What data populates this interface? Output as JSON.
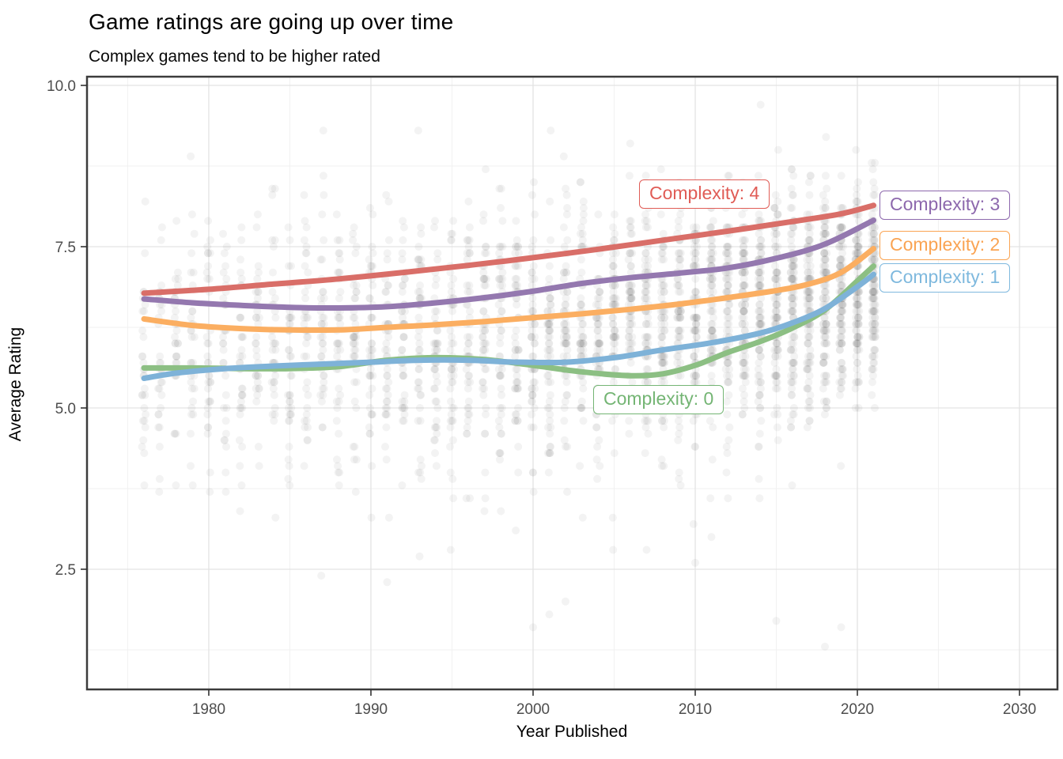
{
  "title": "Game ratings are going up over time",
  "subtitle": "Complex games tend to be higher rated",
  "chart_data": {
    "type": "scatter",
    "title": "Game ratings are going up over time",
    "subtitle": "Complex games tend to be higher rated",
    "xlabel": "Year Published",
    "ylabel": "Average Rating",
    "x_axis": {
      "range": [
        1972.49,
        2032.34
      ],
      "major_ticks": [
        1980,
        1990,
        2000,
        2010,
        2020,
        2030
      ],
      "tick_labels": [
        "1980",
        "1990",
        "2000",
        "2010",
        "2020",
        "2030"
      ],
      "minor_ticks": [
        1975,
        1985,
        1995,
        2005,
        2015,
        2025
      ]
    },
    "y_axis": {
      "range": [
        0.637,
        10.135
      ],
      "major_ticks": [
        10.0,
        7.5,
        5.0,
        2.5
      ],
      "tick_labels": [
        "10.0",
        "7.5",
        "5.0",
        "2.5"
      ],
      "minor_ticks": [
        8.75,
        6.25,
        3.75,
        1.25
      ]
    },
    "grid": {
      "major_color": "#e3e3e3",
      "minor_color": "#f1f1f1",
      "panel_border_color": "#3c3c3c",
      "tick_color": "#333333",
      "tick_label_color": "#4d4d4d"
    },
    "series": [
      {
        "label": "Complexity: 0",
        "line_color": "#8cbf83",
        "label_color": "#74b574",
        "points": [
          [
            1976,
            5.62
          ],
          [
            1979,
            5.62
          ],
          [
            1982,
            5.61
          ],
          [
            1985,
            5.61
          ],
          [
            1988,
            5.64
          ],
          [
            1991,
            5.74
          ],
          [
            1994,
            5.78
          ],
          [
            1997,
            5.75
          ],
          [
            2000,
            5.66
          ],
          [
            2003,
            5.56
          ],
          [
            2006,
            5.5
          ],
          [
            2008,
            5.53
          ],
          [
            2010,
            5.66
          ],
          [
            2012,
            5.86
          ],
          [
            2014,
            6.03
          ],
          [
            2016,
            6.24
          ],
          [
            2018,
            6.52
          ],
          [
            2020,
            6.97
          ],
          [
            2021,
            7.2
          ]
        ]
      },
      {
        "label": "Complexity: 1",
        "line_color": "#7eb2d8",
        "label_color": "#7fb9de",
        "points": [
          [
            1976,
            5.46
          ],
          [
            1978,
            5.54
          ],
          [
            1981,
            5.61
          ],
          [
            1984,
            5.65
          ],
          [
            1987,
            5.68
          ],
          [
            1990,
            5.71
          ],
          [
            1993,
            5.74
          ],
          [
            1996,
            5.74
          ],
          [
            1999,
            5.71
          ],
          [
            2002,
            5.71
          ],
          [
            2005,
            5.78
          ],
          [
            2008,
            5.9
          ],
          [
            2011,
            6.01
          ],
          [
            2014,
            6.16
          ],
          [
            2016,
            6.32
          ],
          [
            2018,
            6.54
          ],
          [
            2020,
            6.88
          ],
          [
            2021,
            7.07
          ]
        ]
      },
      {
        "label": "Complexity: 2",
        "line_color": "#fbae61",
        "label_color": "#faa453",
        "points": [
          [
            1976,
            6.38
          ],
          [
            1979,
            6.28
          ],
          [
            1982,
            6.23
          ],
          [
            1985,
            6.21
          ],
          [
            1988,
            6.21
          ],
          [
            1991,
            6.25
          ],
          [
            1994,
            6.29
          ],
          [
            1997,
            6.34
          ],
          [
            2000,
            6.4
          ],
          [
            2003,
            6.46
          ],
          [
            2006,
            6.53
          ],
          [
            2009,
            6.61
          ],
          [
            2012,
            6.71
          ],
          [
            2015,
            6.82
          ],
          [
            2017,
            6.92
          ],
          [
            2019,
            7.1
          ],
          [
            2021,
            7.47
          ]
        ]
      },
      {
        "label": "Complexity: 3",
        "line_color": "#9478af",
        "label_color": "#8d68ad",
        "points": [
          [
            1976,
            6.69
          ],
          [
            1979,
            6.63
          ],
          [
            1982,
            6.59
          ],
          [
            1985,
            6.56
          ],
          [
            1988,
            6.55
          ],
          [
            1991,
            6.57
          ],
          [
            1994,
            6.63
          ],
          [
            1997,
            6.71
          ],
          [
            2000,
            6.81
          ],
          [
            2003,
            6.93
          ],
          [
            2006,
            7.02
          ],
          [
            2009,
            7.09
          ],
          [
            2012,
            7.17
          ],
          [
            2015,
            7.32
          ],
          [
            2018,
            7.54
          ],
          [
            2021,
            7.91
          ]
        ]
      },
      {
        "label": "Complexity: 4",
        "line_color": "#d96e68",
        "label_color": "#e05c56",
        "points": [
          [
            1976,
            6.78
          ],
          [
            1980,
            6.84
          ],
          [
            1984,
            6.92
          ],
          [
            1988,
            7.0
          ],
          [
            1992,
            7.1
          ],
          [
            1996,
            7.21
          ],
          [
            2000,
            7.33
          ],
          [
            2004,
            7.46
          ],
          [
            2008,
            7.6
          ],
          [
            2012,
            7.74
          ],
          [
            2016,
            7.89
          ],
          [
            2019,
            8.01
          ],
          [
            2021,
            8.14
          ]
        ]
      }
    ],
    "scatter": {
      "description": "individual game ratings by year published",
      "color": "#7f7f7f",
      "opacity": 0.09,
      "radius": 5,
      "seed": 11,
      "year_start": 1976,
      "year_end": 2021,
      "count_keyframes": [
        [
          1976,
          30
        ],
        [
          1985,
          38
        ],
        [
          1995,
          50
        ],
        [
          2005,
          68
        ],
        [
          2012,
          88
        ],
        [
          2017,
          106
        ],
        [
          2021,
          116
        ]
      ],
      "mean_keyframes": [
        [
          1976,
          5.9
        ],
        [
          1985,
          5.92
        ],
        [
          1995,
          6.05
        ],
        [
          2005,
          6.2
        ],
        [
          2012,
          6.45
        ],
        [
          2017,
          6.65
        ],
        [
          2021,
          6.95
        ]
      ],
      "sd_keyframes": [
        [
          1976,
          0.95
        ],
        [
          1985,
          1.0
        ],
        [
          1995,
          1.05
        ],
        [
          2005,
          1.05
        ],
        [
          2012,
          0.95
        ],
        [
          2017,
          0.9
        ],
        [
          2021,
          0.85
        ]
      ],
      "rating_min": 1.15,
      "rating_max": 9.65,
      "low_outlier_year_start": 1988,
      "low_outlier_chance": 0.5,
      "low_outlier_range": [
        1.2,
        3.4
      ]
    }
  }
}
